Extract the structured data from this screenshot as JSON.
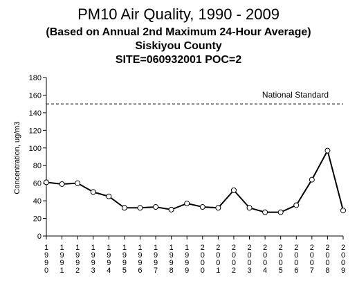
{
  "title": "PM10 Air Quality, 1990 - 2009",
  "subtitle_lines": [
    "(Based on Annual 2nd Maximum 24-Hour Average)",
    "Siskiyou County",
    "SITE=060932001 POC=2"
  ],
  "chart_data": {
    "type": "line",
    "ylabel": "Concentration, ug/m3",
    "xlabel": "",
    "ylim": [
      0,
      180
    ],
    "yticks": [
      0,
      20,
      40,
      60,
      80,
      100,
      120,
      140,
      160,
      180
    ],
    "categories": [
      "1990",
      "1991",
      "1992",
      "1993",
      "1994",
      "1995",
      "1996",
      "1997",
      "1998",
      "1999",
      "2000",
      "2001",
      "2002",
      "2003",
      "2004",
      "2005",
      "2006",
      "2007",
      "2008",
      "2009"
    ],
    "series": [
      {
        "values": [
          61,
          59,
          60,
          50,
          45,
          32,
          32,
          33,
          30,
          37,
          33,
          32,
          52,
          32,
          27,
          27,
          35,
          64,
          97,
          29
        ]
      }
    ],
    "reference_line": {
      "label": "National Standard",
      "value": 150,
      "style": "dashed"
    },
    "marker": "open-circle",
    "grid": false,
    "line_color": "#000000"
  }
}
